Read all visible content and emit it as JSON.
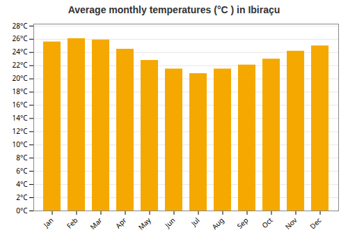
{
  "chart_data": {
    "type": "bar",
    "title": "Average monthly temperatures (°C ) in Ibiraçu",
    "categories": [
      "Jan",
      "Feb",
      "Mar",
      "Apr",
      "May",
      "Jun",
      "Jul",
      "Aug",
      "Sep",
      "Oct",
      "Nov",
      "Dec"
    ],
    "values": [
      25.6,
      26.1,
      25.9,
      24.5,
      22.8,
      21.5,
      20.8,
      21.5,
      22.1,
      23.0,
      24.2,
      25.0
    ],
    "color": "#F5A800",
    "ylim": [
      0,
      28.3
    ],
    "yticks": [
      {
        "value": 0,
        "label": "0°C"
      },
      {
        "value": 2,
        "label": "2°C"
      },
      {
        "value": 4,
        "label": "4°C"
      },
      {
        "value": 6,
        "label": "6°C"
      },
      {
        "value": 8,
        "label": "8°C"
      },
      {
        "value": 10,
        "label": "10°C"
      },
      {
        "value": 12,
        "label": "12°C"
      },
      {
        "value": 14,
        "label": "14°C"
      },
      {
        "value": 16,
        "label": "16°C"
      },
      {
        "value": 18,
        "label": "18°C"
      },
      {
        "value": 20,
        "label": "20°C"
      },
      {
        "value": 22,
        "label": "22°C"
      },
      {
        "value": 24,
        "label": "24°C"
      },
      {
        "value": 26,
        "label": "26°C"
      },
      {
        "value": 28,
        "label": "28°C"
      }
    ],
    "grid": true
  }
}
